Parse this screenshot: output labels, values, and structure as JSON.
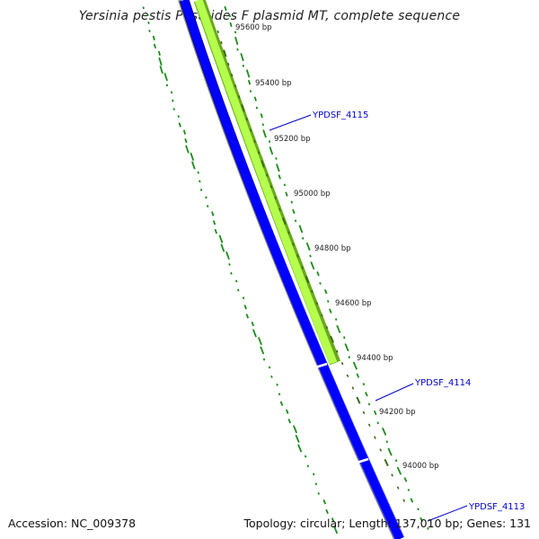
{
  "title": "Yersinia pestis Pestoides F plasmid MT, complete sequence",
  "accession_text": "Accession: NC_009378",
  "summary_text": "Topology: circular; Length: 137,010 bp; Genes: 131",
  "tick_labels": [
    "95600 bp",
    "95400 bp",
    "95200 bp",
    "95000 bp",
    "94800 bp",
    "94600 bp",
    "94400 bp",
    "94200 bp",
    "94000 bp"
  ],
  "genes": [
    {
      "label": "YPDSF_4115",
      "strand": "reverse",
      "color": "#33cc00"
    },
    {
      "label": "YPDSF_4114",
      "strand": "forward",
      "color": "#0000ff"
    },
    {
      "label": "YPDSF_4113",
      "strand": "forward",
      "color": "#0000ff"
    }
  ],
  "colors": {
    "backbone": "#808080",
    "forward_genes": "#0000ff",
    "reverse_genes": "#99ff33",
    "gc_dots": "#1a8c1a",
    "ticks": "#3b6b12",
    "gene_label": "#0000cc"
  }
}
